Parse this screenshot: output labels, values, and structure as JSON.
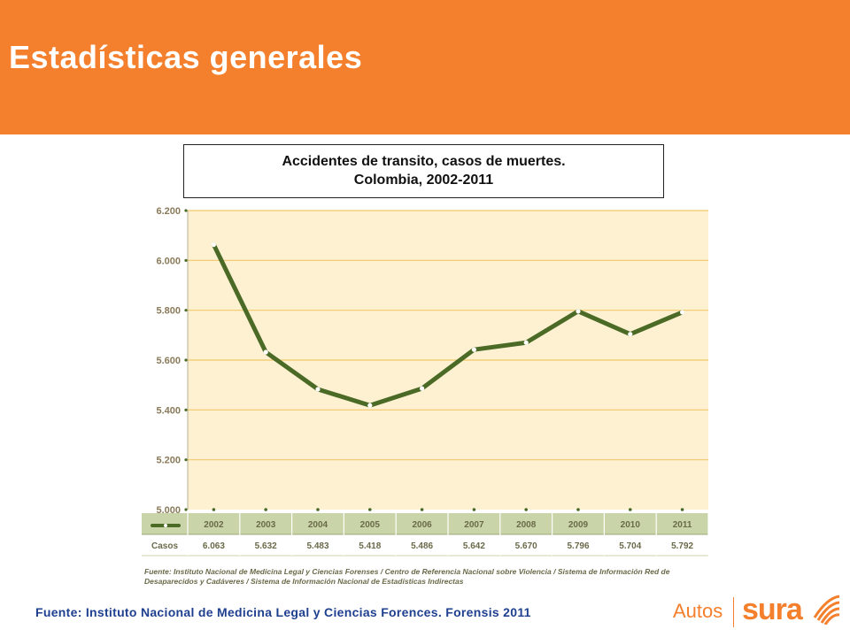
{
  "page": {
    "title": "Estadísticas generales",
    "chart_title_line1": "Accidentes de transito, casos de muertes.",
    "chart_title_line2": "Colombia, 2002-2011",
    "inner_source": "Fuente: Instituto Nacional de Medicina Legal y Ciencias Forenses / Centro de Referencia Nacional sobre Violencia / Sistema de Información Red de Desaparecidos y Cadáveres / Sistema de Información Nacional de Estadísticas Indirectas",
    "footer_source": "Fuente: Instituto Nacional de Medicina Legal y Ciencias Forences. Forensis 2011",
    "brand_autos": "Autos",
    "brand_sura": "sura"
  },
  "colors": {
    "header": "#f47f2c",
    "plot_bg": "#fdf1d2",
    "gridline": "#f3c869",
    "line": "#4a6a26",
    "table_header_bg": "#c9d5a8",
    "brand": "#f47f2c",
    "footer_text": "#1f3f8f"
  },
  "chart_data": {
    "type": "line",
    "title": "Accidentes de transito, casos de muertes. Colombia, 2002-2011",
    "xlabel": "",
    "ylabel": "",
    "categories": [
      "2002",
      "2003",
      "2004",
      "2005",
      "2006",
      "2007",
      "2008",
      "2009",
      "2010",
      "2011"
    ],
    "series": [
      {
        "name": "Casos",
        "values": [
          6063,
          5632,
          5483,
          5418,
          5486,
          5642,
          5670,
          5796,
          5704,
          5792
        ]
      }
    ],
    "y_ticks": [
      "5.000",
      "5.200",
      "5.400",
      "5.600",
      "5.800",
      "6.000",
      "6.200"
    ],
    "y_tick_values": [
      5000,
      5200,
      5400,
      5600,
      5800,
      6000,
      6200
    ],
    "value_labels": [
      "6.063",
      "5.632",
      "5.483",
      "5.418",
      "5.486",
      "5.642",
      "5.670",
      "5.796",
      "5.704",
      "5.792"
    ],
    "ylim": [
      5000,
      6200
    ],
    "grid": true,
    "table_row_label": "Casos"
  }
}
